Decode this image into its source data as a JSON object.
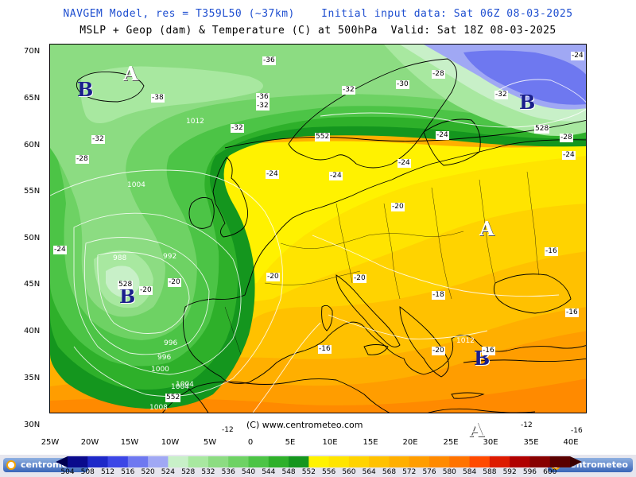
{
  "header": {
    "line1": "NAVGEM Model, res = T359L50 (~37km)    Initial input data: Sat 06Z 08-03-2025",
    "line2": "MSLP + Geop (dam) & Temperature (C) at 500hPa  Valid: Sat 18Z 08-03-2025"
  },
  "axes": {
    "lat_labels": [
      "70N",
      "65N",
      "60N",
      "55N",
      "50N",
      "45N",
      "40N",
      "35N",
      "30N"
    ],
    "lon_labels": [
      "25W",
      "20W",
      "15W",
      "10W",
      "5W",
      "0",
      "5E",
      "10E",
      "15E",
      "20E",
      "25E",
      "30E",
      "35E",
      "40E"
    ]
  },
  "map": {
    "copyright": "(C) www.centrometeo.com",
    "pressure_systems": [
      {
        "label": "A",
        "type": "high"
      },
      {
        "label": "B",
        "type": "low"
      },
      {
        "label": "B",
        "type": "low"
      },
      {
        "label": "B",
        "type": "low"
      },
      {
        "label": "A",
        "type": "high"
      },
      {
        "label": "B",
        "type": "low"
      },
      {
        "label": "A",
        "type": "high"
      }
    ],
    "geop_labels": [
      "552",
      "528",
      "552",
      "528"
    ],
    "temp_labels": [
      "-36",
      "-32",
      "-28",
      "-38",
      "-36",
      "-32",
      "-32",
      "-30",
      "-28",
      "-32",
      "-24",
      "-32",
      "-28",
      "-24",
      "-24",
      "-24",
      "-24",
      "-24",
      "-20",
      "-24",
      "-20",
      "-20",
      "-20",
      "-20",
      "-18",
      "-16",
      "-16",
      "-16",
      "-20",
      "-16",
      "-12",
      "-12",
      "-16"
    ],
    "isobar_labels": [
      "1012",
      "1004",
      "988",
      "992",
      "996",
      "1000",
      "1004",
      "1008",
      "1012",
      "996",
      "1004",
      "1012"
    ]
  },
  "legend": {
    "logo_text": "centrometeo",
    "values": [
      "504",
      "508",
      "512",
      "516",
      "520",
      "524",
      "528",
      "532",
      "536",
      "540",
      "544",
      "548",
      "552",
      "556",
      "560",
      "564",
      "568",
      "572",
      "576",
      "580",
      "584",
      "588",
      "592",
      "596",
      "600"
    ],
    "colors": [
      "#0a0a8c",
      "#1e28c8",
      "#3c46e6",
      "#6e78f0",
      "#a0a8f4",
      "#c8f0c8",
      "#a8e8a0",
      "#8cdc82",
      "#6ed264",
      "#4cc446",
      "#2eb02a",
      "#14961e",
      "#fff200",
      "#ffe400",
      "#ffd300",
      "#ffc100",
      "#ffaf00",
      "#ff9d00",
      "#ff8a00",
      "#ff7300",
      "#ff4a00",
      "#dd1a00",
      "#b00000",
      "#880000",
      "#5a0000"
    ]
  }
}
